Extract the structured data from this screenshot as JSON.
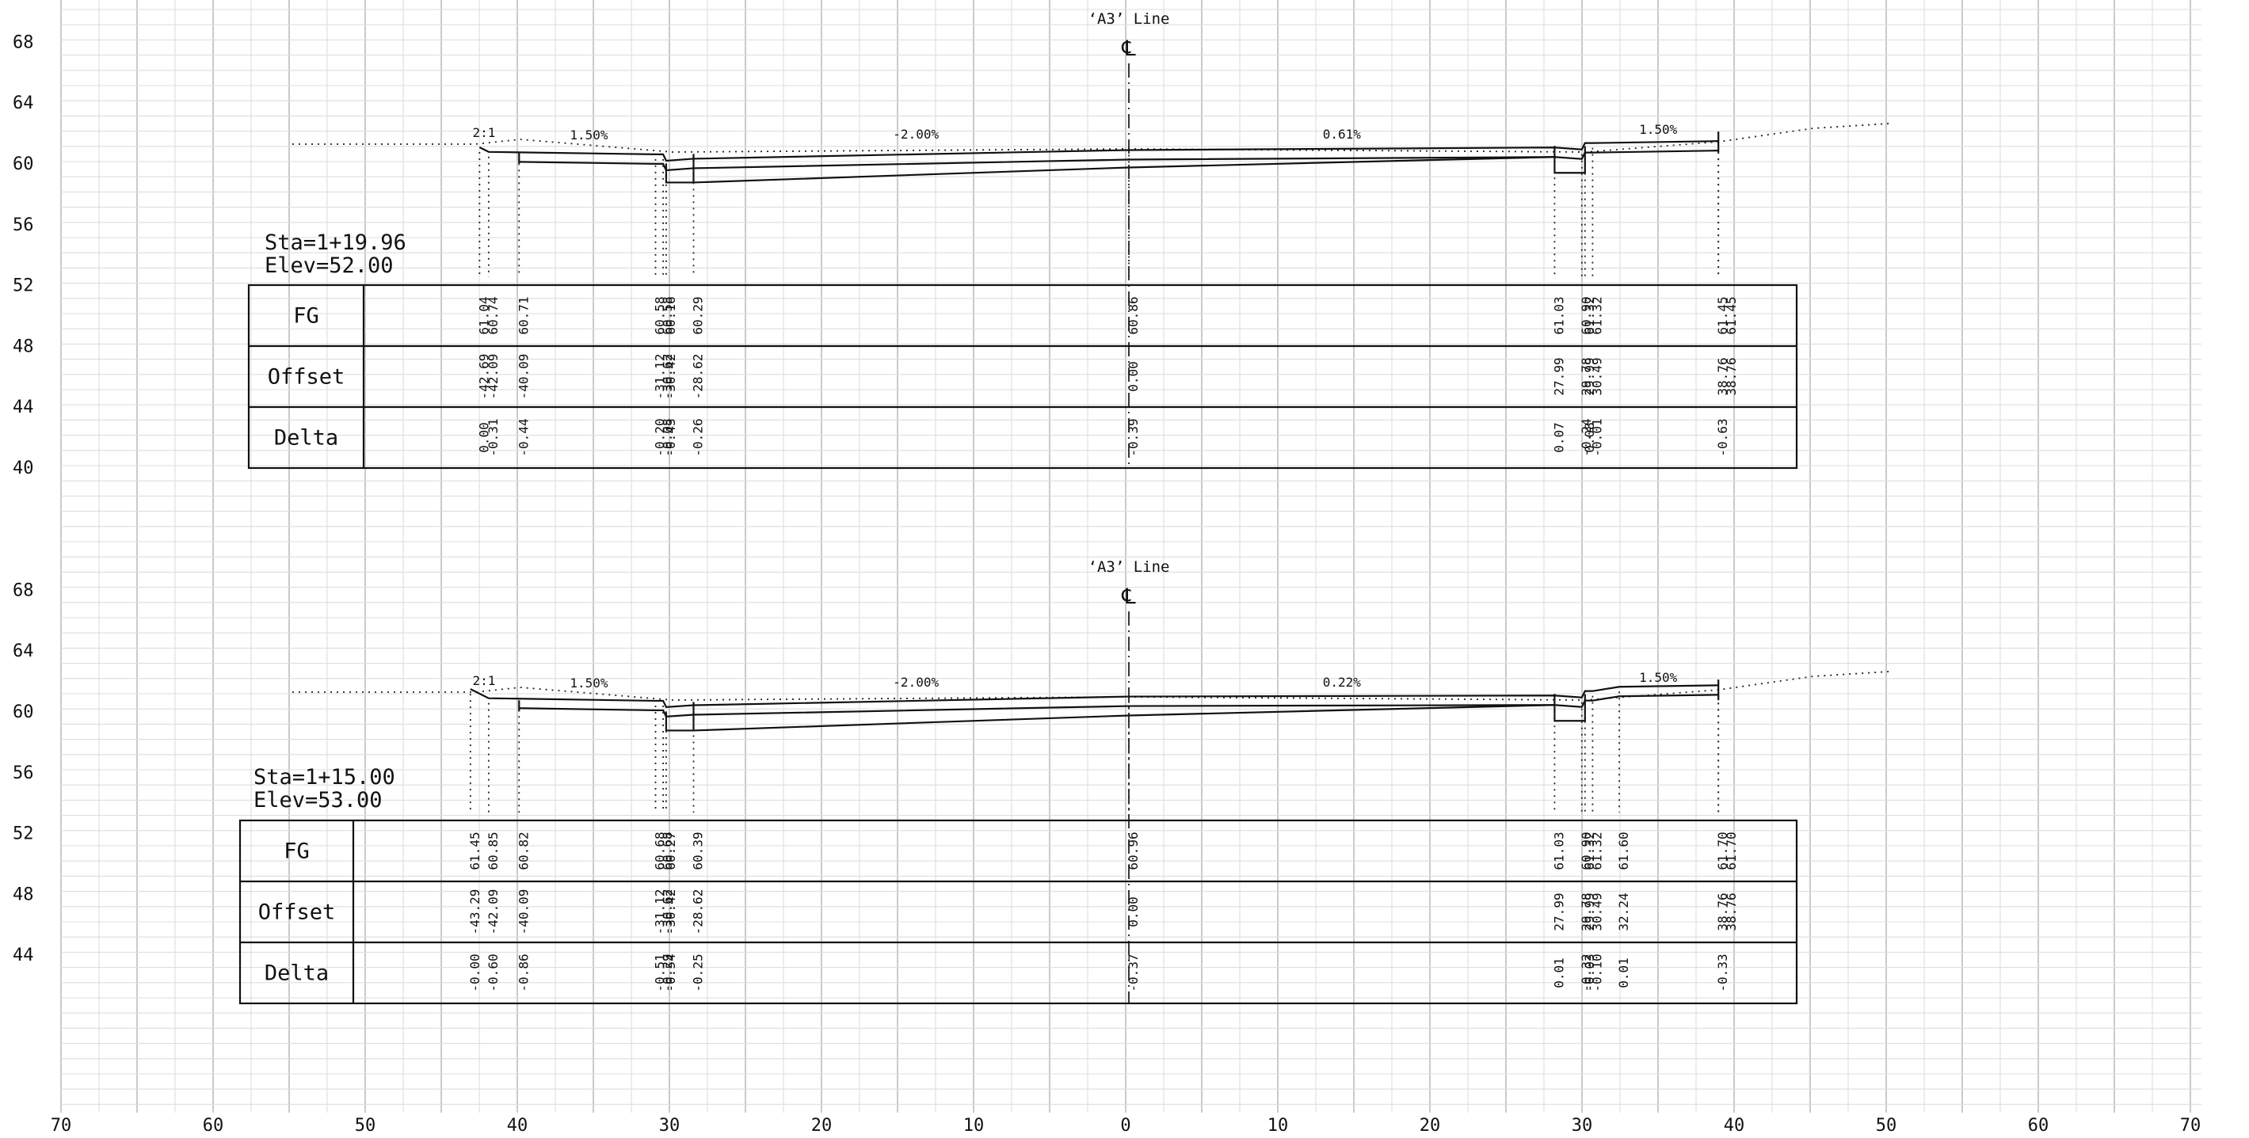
{
  "x_axis": {
    "ticks": [
      "70",
      "60",
      "50",
      "40",
      "30",
      "20",
      "10",
      "0",
      "10",
      "20",
      "30",
      "40",
      "50",
      "60",
      "70"
    ]
  },
  "sections": [
    {
      "name": "section-top",
      "line_label": "‘A3’ Line",
      "centerline_symbol": "℄",
      "station": "Sta=1+19.96",
      "elevation": "Elev=52.00",
      "y_ticks": [
        "68",
        "64",
        "60",
        "56",
        "52",
        "48",
        "44",
        "40"
      ],
      "slopes": [
        "2:1",
        "1.50%",
        "-2.00%",
        "0.61%",
        "1.50%"
      ],
      "row_headers": [
        "FG",
        "Offset",
        "Delta"
      ],
      "points": [
        {
          "fg": "61.04",
          "offset": "-42.69",
          "delta": "0.00"
        },
        {
          "fg": "60.74",
          "offset": "-42.09",
          "delta": "-0.31"
        },
        {
          "fg": "60.71",
          "offset": "-40.09",
          "delta": "-0.44"
        },
        {
          "fg": "60.58",
          "offset": "-31.12",
          "delta": "-0.20"
        },
        {
          "fg": "60.58",
          "offset": "-30.62",
          "delta": "-0.08"
        },
        {
          "fg": "60.16",
          "offset": "-30.42",
          "delta": "-0.43"
        },
        {
          "fg": "60.29",
          "offset": "-28.62",
          "delta": "-0.26"
        },
        {
          "fg": "60.86",
          "offset": "0.00",
          "delta": "-0.39"
        },
        {
          "fg": "61.03",
          "offset": "27.99",
          "delta": "0.07"
        },
        {
          "fg": "60.90",
          "offset": "29.78",
          "delta": "-0.24"
        },
        {
          "fg": "61.32",
          "offset": "29.99",
          "delta": "0.08"
        },
        {
          "fg": "61.32",
          "offset": "30.49",
          "delta": "-0.01"
        },
        {
          "fg": "61.45",
          "offset": "38.76",
          "delta": "-0.63"
        },
        {
          "fg": "61.45",
          "offset": "38.76",
          "delta": ""
        }
      ]
    },
    {
      "name": "section-bottom",
      "line_label": "‘A3’ Line",
      "centerline_symbol": "℄",
      "station": "Sta=1+15.00",
      "elevation": "Elev=53.00",
      "y_ticks": [
        "68",
        "64",
        "60",
        "56",
        "52",
        "48",
        "44"
      ],
      "slopes": [
        "2:1",
        "1.50%",
        "-2.00%",
        "0.22%",
        "1.50%"
      ],
      "row_headers": [
        "FG",
        "Offset",
        "Delta"
      ],
      "points": [
        {
          "fg": "61.45",
          "offset": "-43.29",
          "delta": "-0.00"
        },
        {
          "fg": "60.85",
          "offset": "-42.09",
          "delta": "-0.60"
        },
        {
          "fg": "60.82",
          "offset": "-40.09",
          "delta": "-0.86"
        },
        {
          "fg": "60.68",
          "offset": "-31.12",
          "delta": "-0.51"
        },
        {
          "fg": "60.68",
          "offset": "-30.62",
          "delta": "-0.29"
        },
        {
          "fg": "60.27",
          "offset": "-30.42",
          "delta": "-0.54"
        },
        {
          "fg": "60.39",
          "offset": "-28.62",
          "delta": "-0.25"
        },
        {
          "fg": "60.96",
          "offset": "0.00",
          "delta": "-0.37"
        },
        {
          "fg": "61.03",
          "offset": "27.99",
          "delta": "0.01"
        },
        {
          "fg": "60.90",
          "offset": "29.78",
          "delta": "-0.32"
        },
        {
          "fg": "61.32",
          "offset": "29.99",
          "delta": "-0.03"
        },
        {
          "fg": "61.32",
          "offset": "30.49",
          "delta": "-0.10"
        },
        {
          "fg": "61.60",
          "offset": "32.24",
          "delta": "0.01"
        },
        {
          "fg": "61.70",
          "offset": "38.76",
          "delta": "-0.33"
        },
        {
          "fg": "61.70",
          "offset": "38.76",
          "delta": ""
        }
      ]
    }
  ]
}
